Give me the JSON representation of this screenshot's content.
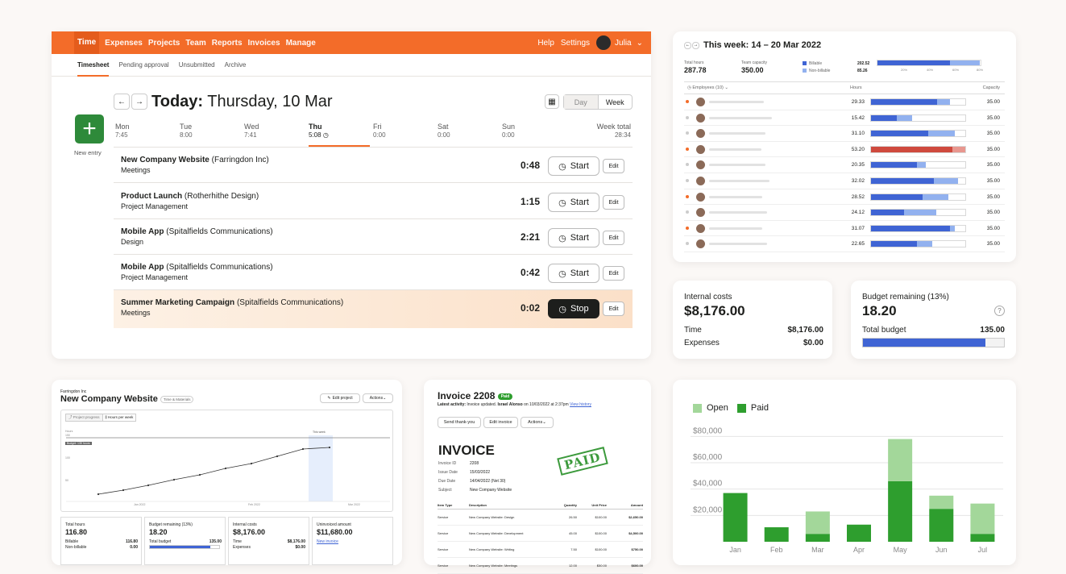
{
  "nav": {
    "items": [
      "Time",
      "Expenses",
      "Projects",
      "Team",
      "Reports",
      "Invoices",
      "Manage"
    ],
    "help": "Help",
    "settings": "Settings",
    "user": "Julia"
  },
  "subnav": [
    "Timesheet",
    "Pending approval",
    "Unsubmitted",
    "Archive"
  ],
  "timesheet": {
    "today_label": "Today:",
    "date": "Thursday, 10 Mar",
    "view_day": "Day",
    "view_week": "Week",
    "new_entry": "New entry",
    "days": [
      {
        "n": "Mon",
        "v": "7:45"
      },
      {
        "n": "Tue",
        "v": "8:00"
      },
      {
        "n": "Wed",
        "v": "7:41"
      },
      {
        "n": "Thu",
        "v": "5:08"
      },
      {
        "n": "Fri",
        "v": "0:00"
      },
      {
        "n": "Sat",
        "v": "0:00"
      },
      {
        "n": "Sun",
        "v": "0:00"
      }
    ],
    "week_total_label": "Week total",
    "week_total": "28:34",
    "entries": [
      {
        "project": "New Company Website",
        "client": "(Farringdon Inc)",
        "task": "Meetings",
        "duration": "0:48",
        "action": "Start"
      },
      {
        "project": "Product Launch",
        "client": "(Rotherhithe Design)",
        "task": "Project Management",
        "duration": "1:15",
        "action": "Start"
      },
      {
        "project": "Mobile App",
        "client": "(Spitalfields Communications)",
        "task": "Design",
        "duration": "2:21",
        "action": "Start"
      },
      {
        "project": "Mobile App",
        "client": "(Spitalfields Communications)",
        "task": "Project Management",
        "duration": "0:42",
        "action": "Start"
      },
      {
        "project": "Summer Marketing Campaign",
        "client": "(Spitalfields Communications)",
        "task": "Meetings",
        "duration": "0:02",
        "action": "Stop"
      }
    ],
    "edit": "Edit"
  },
  "week": {
    "title": "This week: 14 – 20 Mar 2022",
    "total_hours_label": "Total hours",
    "total_hours": "287.78",
    "capacity_label": "Team capacity",
    "capacity": "350.00",
    "billable_label": "Billable",
    "nonbillable_label": "Non-billable",
    "billable": "202.52",
    "nonbillable": "85.26",
    "scale": [
      "20%",
      "40%",
      "60%",
      "80%"
    ],
    "employees_label": "Employees (10)",
    "hours_label": "Hours",
    "capacity_col": "Capacity",
    "rows": [
      {
        "hours": "29.33",
        "cap": "35.00",
        "b": 0.7,
        "nb": 0.14,
        "dot": "#f36c29",
        "over": false
      },
      {
        "hours": "15.42",
        "cap": "35.00",
        "b": 0.27,
        "nb": 0.17,
        "dot": "#ccc",
        "over": false
      },
      {
        "hours": "31.10",
        "cap": "35.00",
        "b": 0.61,
        "nb": 0.28,
        "dot": "#ccc",
        "over": false
      },
      {
        "hours": "53.20",
        "cap": "35.00",
        "b": 0.86,
        "nb": 0.14,
        "dot": "#f36c29",
        "over": true
      },
      {
        "hours": "20.35",
        "cap": "35.00",
        "b": 0.49,
        "nb": 0.09,
        "dot": "#ccc",
        "over": false
      },
      {
        "hours": "32.02",
        "cap": "35.00",
        "b": 0.67,
        "nb": 0.25,
        "dot": "#ccc",
        "over": false
      },
      {
        "hours": "28.52",
        "cap": "35.00",
        "b": 0.55,
        "nb": 0.27,
        "dot": "#f36c29",
        "over": false
      },
      {
        "hours": "24.12",
        "cap": "35.00",
        "b": 0.35,
        "nb": 0.34,
        "dot": "#ccc",
        "over": false
      },
      {
        "hours": "31.07",
        "cap": "35.00",
        "b": 0.84,
        "nb": 0.05,
        "dot": "#f36c29",
        "over": false
      },
      {
        "hours": "22.65",
        "cap": "35.00",
        "b": 0.49,
        "nb": 0.16,
        "dot": "#ccc",
        "over": false
      }
    ]
  },
  "internal": {
    "label": "Internal costs",
    "value": "$8,176.00",
    "time_label": "Time",
    "time": "$8,176.00",
    "exp_label": "Expenses",
    "exp": "$0.00"
  },
  "budget": {
    "label": "Budget remaining (13%)",
    "value": "18.20",
    "total_label": "Total budget",
    "total": "135.00",
    "fill": 0.87
  },
  "project": {
    "client": "Farringdon Inc",
    "name": "New Company Website",
    "badge": "Time & Materials",
    "edit": "Edit project",
    "actions": "Actions",
    "tab1": "Project progress",
    "tab2": "Hours per week",
    "budget_tag": "Budget: 135 hours",
    "this_week": "This week",
    "ylabels": [
      "Hours",
      "150",
      "100",
      "50"
    ],
    "xlabels": [
      "Jan 2022",
      "Feb 2022",
      "Mar 2022"
    ],
    "stats": [
      {
        "label": "Total hours",
        "value": "116.80",
        "r1l": "Billable",
        "r1v": "116.80",
        "r2l": "Non-billable",
        "r2v": "0.00"
      },
      {
        "label": "Budget remaining (13%)",
        "value": "18.20",
        "r1l": "Total budget",
        "r1v": "135.00"
      },
      {
        "label": "Internal costs",
        "value": "$8,176.00",
        "r1l": "Time",
        "r1v": "$8,176.00",
        "r2l": "Expenses",
        "r2v": "$0.00"
      },
      {
        "label": "Uninvoiced amount",
        "value": "$11,680.00",
        "link": "New invoice"
      }
    ]
  },
  "invoice": {
    "title": "Invoice 2208",
    "badge": "Paid",
    "activity_label": "Latest activity:",
    "activity": "Invoice updated.",
    "by": "Israel Alonso",
    "when": "on 10/03/2022 at 2:37pm",
    "history": "View history",
    "btn1": "Send thank-you",
    "btn2": "Edit invoice",
    "btn3": "Actions",
    "heading": "INVOICE",
    "stamp": "PAID",
    "meta": [
      {
        "k": "Invoice ID",
        "v": "2208"
      },
      {
        "k": "Issue Date",
        "v": "15/03/2022"
      },
      {
        "k": "Due Date",
        "v": "14/04/2022 (Net 30)"
      },
      {
        "k": "Subject",
        "v": "New Company Website"
      }
    ],
    "cols": [
      "Item Type",
      "Description",
      "Quantity",
      "Unit Price",
      "Amount"
    ],
    "items": [
      [
        "Service",
        "New Company Website: Design",
        "26.50",
        "$100.00",
        "$2,650.00"
      ],
      [
        "Service",
        "New Company Website: Development",
        "45.00",
        "$100.00",
        "$4,500.00"
      ],
      [
        "Service",
        "New Company Website: Writing",
        "7.50",
        "$100.00",
        "$750.00"
      ],
      [
        "Service",
        "New Company Website: Meetings",
        "12.00",
        "$50.00",
        "$600.00"
      ]
    ]
  },
  "chart_data": {
    "type": "bar",
    "stacked": true,
    "categories": [
      "Jan",
      "Feb",
      "Mar",
      "Apr",
      "May",
      "Jun",
      "Jul"
    ],
    "series": [
      {
        "name": "Paid",
        "color": "#2e9e2e",
        "values": [
          37000,
          11000,
          6000,
          13000,
          46000,
          25000,
          6000
        ]
      },
      {
        "name": "Open",
        "color": "#a3d79a",
        "values": [
          0,
          0,
          17000,
          0,
          32000,
          10000,
          23000
        ]
      }
    ],
    "yticks": [
      "$80,000",
      "$60,000",
      "$40,000",
      "$20,000"
    ],
    "ylim": [
      0,
      90000
    ],
    "legend": "top-left"
  },
  "colors": {
    "brand": "#f36c29",
    "green": "#2e9e2e",
    "blue": "#3f64d4"
  }
}
